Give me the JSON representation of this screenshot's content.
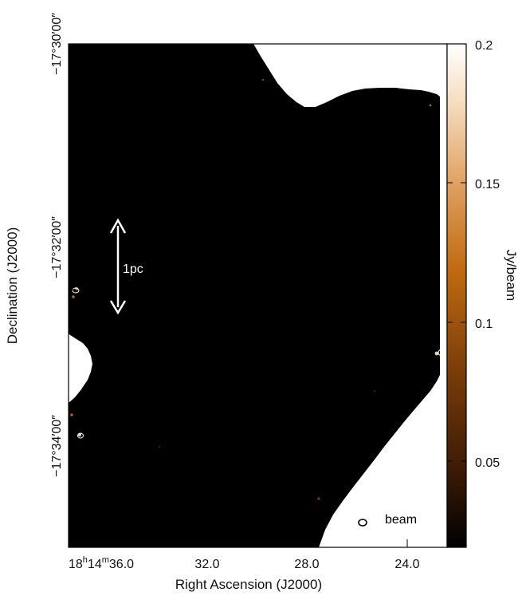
{
  "figure": {
    "x_axis_title": "Right Ascension (J2000)",
    "y_axis_title": "Declination (J2000)",
    "x_ticks": [
      {
        "h": "18",
        "m": "14",
        "s": "36.0",
        "kind": "full"
      },
      {
        "s": "32.0",
        "kind": "sec"
      },
      {
        "s": "28.0",
        "kind": "sec"
      },
      {
        "s": "24.0",
        "kind": "sec"
      }
    ],
    "y_ticks": [
      "−17°30′00″",
      "−17°32′00″",
      "−17°34′00″"
    ],
    "colorbar": {
      "label": "Jy/beam",
      "ticks": [
        "0.2",
        "0.15",
        "0.1",
        "0.05"
      ],
      "colors": [
        "#000000",
        "#3a1a05",
        "#7a3d08",
        "#c06a10",
        "#e0a060",
        "#f5dcbc",
        "#ffffff"
      ]
    },
    "scale_bar": {
      "label": "1pc"
    },
    "beam": {
      "label": "beam"
    },
    "colors": {
      "map_background": "#000000",
      "frame": "#000000",
      "annotation": "#ffffff"
    }
  }
}
